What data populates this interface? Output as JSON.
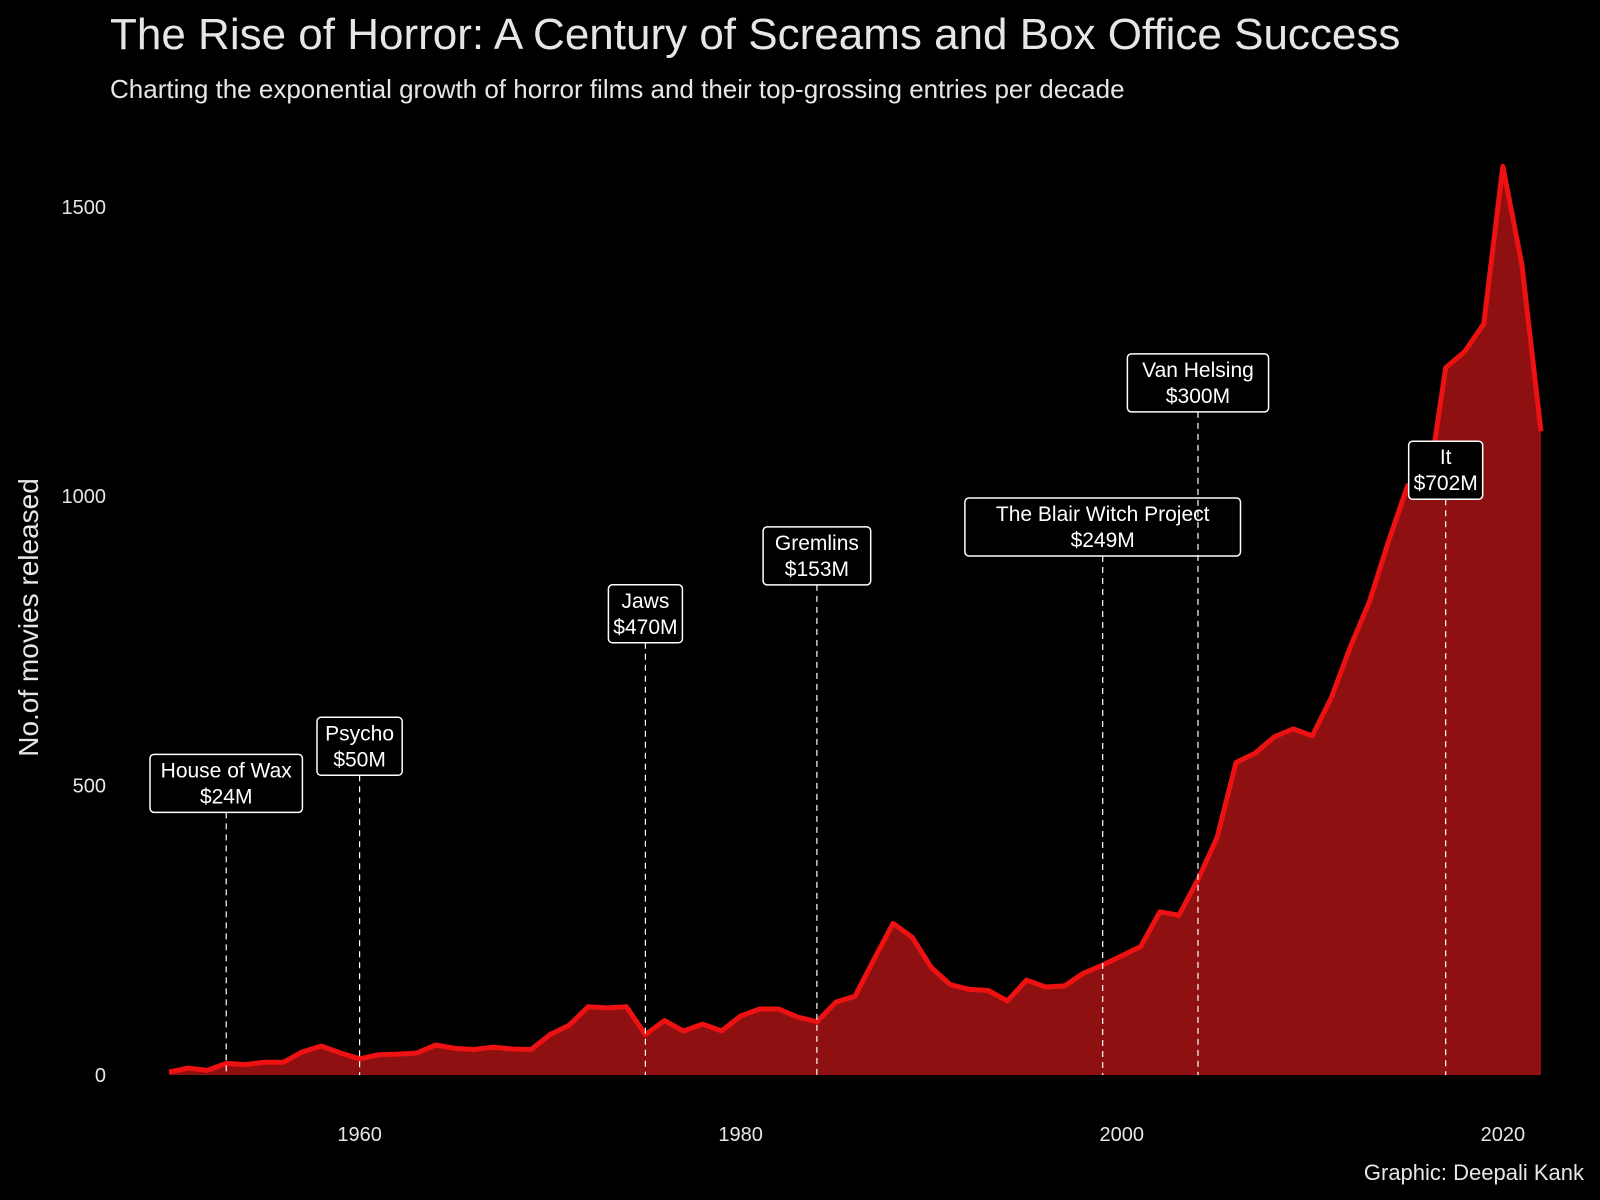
{
  "title": "The Rise of Horror: A Century of Screams and Box Office Success",
  "subtitle": "Charting the exponential growth of horror films and their top-grossing entries per decade",
  "caption": "Graphic: Deepali Kank",
  "colors": {
    "background": "#000000",
    "line": "#ee1111",
    "area": "#8e1010",
    "text": "#e6e6e6",
    "annotation": "#ffffff"
  },
  "chart_data": {
    "type": "area",
    "title": "",
    "xlabel": "",
    "ylabel": "No.of movies released",
    "xlim": [
      1949,
      2023
    ],
    "ylim": [
      0,
      1650
    ],
    "x_ticks": [
      1960,
      1980,
      2000,
      2020
    ],
    "y_ticks": [
      0,
      500,
      1000,
      1500
    ],
    "grid": false,
    "legend": "none",
    "series": [
      {
        "x": [
          1950,
          1951,
          1952,
          1953,
          1954,
          1955,
          1956,
          1957,
          1958,
          1959,
          1960,
          1961,
          1962,
          1963,
          1964,
          1965,
          1966,
          1967,
          1968,
          1969,
          1970,
          1971,
          1972,
          1973,
          1974,
          1975,
          1976,
          1977,
          1978,
          1979,
          1980,
          1981,
          1982,
          1983,
          1984,
          1985,
          1986,
          1987,
          1988,
          1989,
          1990,
          1991,
          1992,
          1993,
          1994,
          1995,
          1996,
          1997,
          1998,
          1999,
          2000,
          2001,
          2002,
          2003,
          2004,
          2005,
          2006,
          2007,
          2008,
          2009,
          2010,
          2011,
          2012,
          2013,
          2014,
          2015,
          2016,
          2017,
          2018,
          2019,
          2020,
          2021,
          2022
        ],
        "y": [
          5,
          12,
          8,
          20,
          18,
          22,
          22,
          40,
          50,
          38,
          28,
          35,
          36,
          38,
          52,
          46,
          44,
          48,
          45,
          44,
          70,
          86,
          118,
          116,
          118,
          70,
          94,
          76,
          88,
          76,
          102,
          114,
          114,
          100,
          92,
          126,
          136,
          200,
          262,
          238,
          186,
          156,
          148,
          146,
          128,
          164,
          152,
          154,
          176,
          190,
          206,
          222,
          282,
          276,
          338,
          410,
          540,
          556,
          584,
          598,
          586,
          652,
          740,
          818,
          922,
          1018,
          1000,
          1222,
          1250,
          1298,
          1570,
          1400,
          1112
        ]
      }
    ],
    "annotations": [
      {
        "x": 1953,
        "film": "House of Wax",
        "gross": "$24M",
        "box_top": 554
      },
      {
        "x": 1960,
        "film": "Psycho",
        "gross": "$50M",
        "box_top": 618
      },
      {
        "x": 1975,
        "film": "Jaws",
        "gross": "$470M",
        "box_top": 847
      },
      {
        "x": 1984,
        "film": "Gremlins",
        "gross": "$153M",
        "box_top": 947
      },
      {
        "x": 1999,
        "film": "The Blair Witch Project",
        "gross": "$249M",
        "box_top": 997
      },
      {
        "x": 2004,
        "film": "Van Helsing",
        "gross": "$300M",
        "box_top": 1246
      },
      {
        "x": 2017,
        "film": "It",
        "gross": "$702M",
        "box_top": 1095
      }
    ]
  }
}
